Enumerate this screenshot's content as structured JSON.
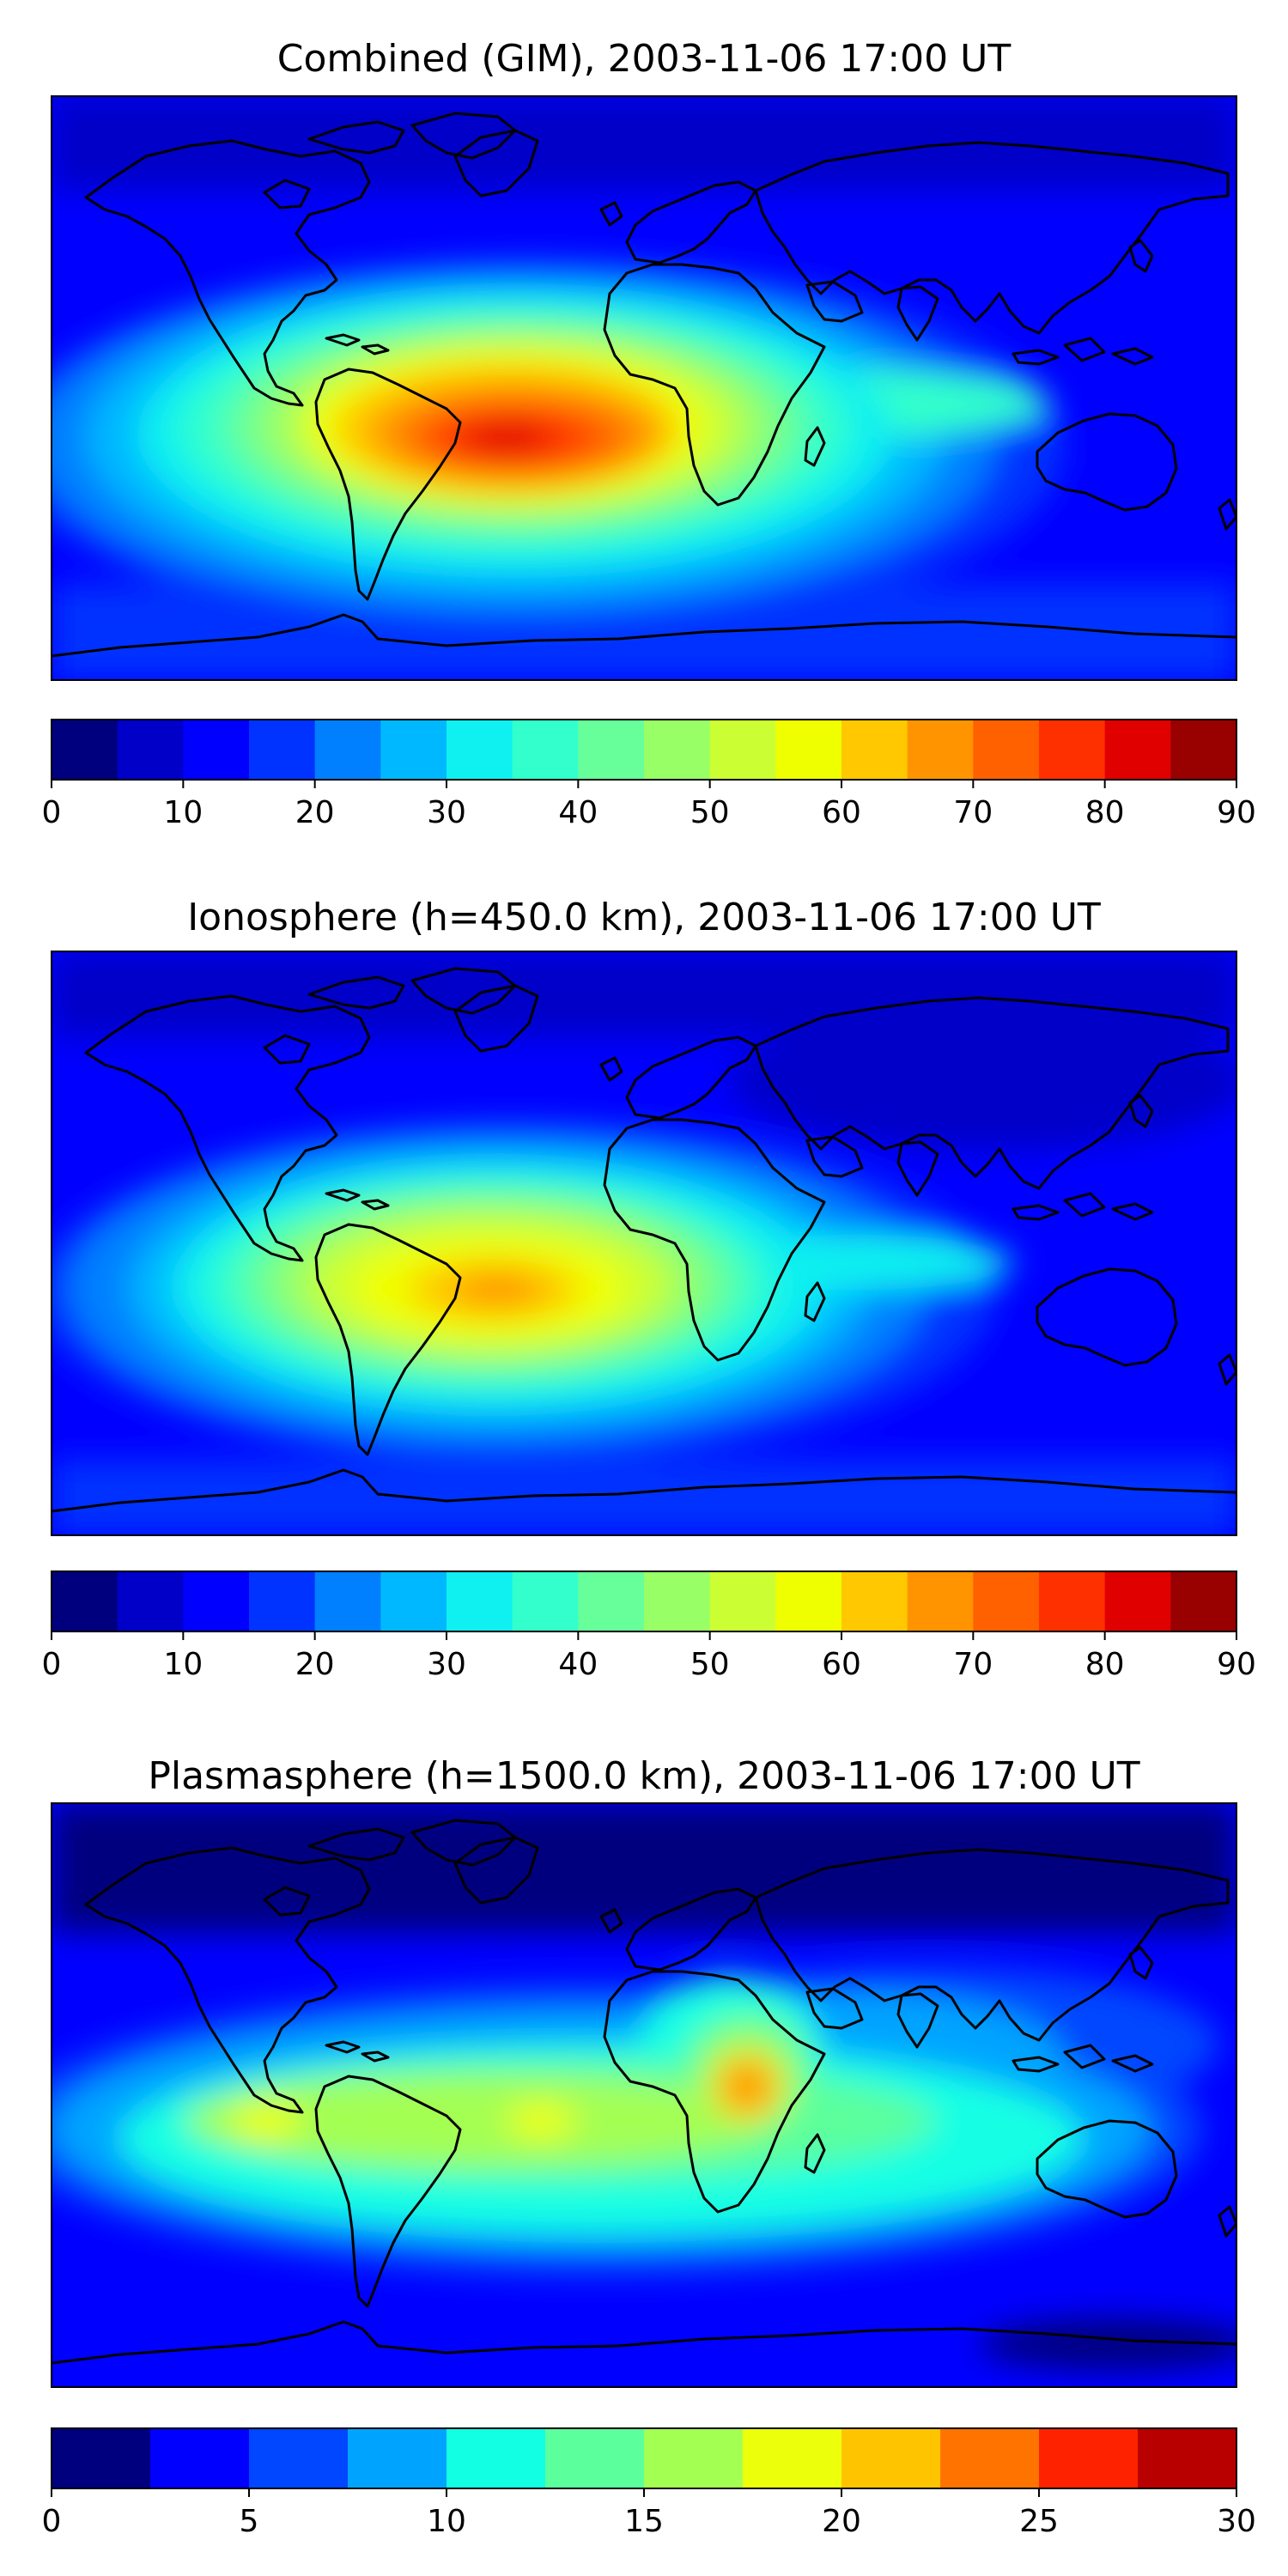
{
  "palette": {
    "jet18": [
      "#00007f",
      "#0000c8",
      "#0000ff",
      "#0033ff",
      "#0080ff",
      "#00b8ff",
      "#0ff0f0",
      "#33ffcc",
      "#66ff99",
      "#99ff66",
      "#ccff33",
      "#f0ff00",
      "#ffc800",
      "#ff9400",
      "#ff6000",
      "#ff3000",
      "#e00000",
      "#990000"
    ],
    "jet12": [
      "#00007f",
      "#0000ff",
      "#0047ff",
      "#00a4ff",
      "#12ffe4",
      "#5bff9c",
      "#a4ff53",
      "#ecff0b",
      "#ffc400",
      "#ff7300",
      "#ff2200",
      "#b80000"
    ],
    "coastline": "#000000"
  },
  "panels": [
    {
      "title": "Combined (GIM), 2003-11-06 17:00 UT",
      "colorbar": {
        "min": 0,
        "max": 90,
        "step": 5,
        "tick_labels": [
          "0",
          "10",
          "20",
          "30",
          "40",
          "50",
          "60",
          "70",
          "80",
          "90"
        ]
      }
    },
    {
      "title": "Ionosphere  (h=450.0 km), 2003-11-06 17:00 UT",
      "colorbar": {
        "min": 0,
        "max": 90,
        "step": 5,
        "tick_labels": [
          "0",
          "10",
          "20",
          "30",
          "40",
          "50",
          "60",
          "70",
          "80",
          "90"
        ]
      }
    },
    {
      "title": "Plasmasphere (h=1500.0 km), 2003-11-06 17:00 UT",
      "colorbar": {
        "min": 0,
        "max": 30,
        "step": 2.5,
        "tick_labels": [
          "0",
          "5",
          "10",
          "15",
          "20",
          "25",
          "30"
        ]
      }
    }
  ]
}
